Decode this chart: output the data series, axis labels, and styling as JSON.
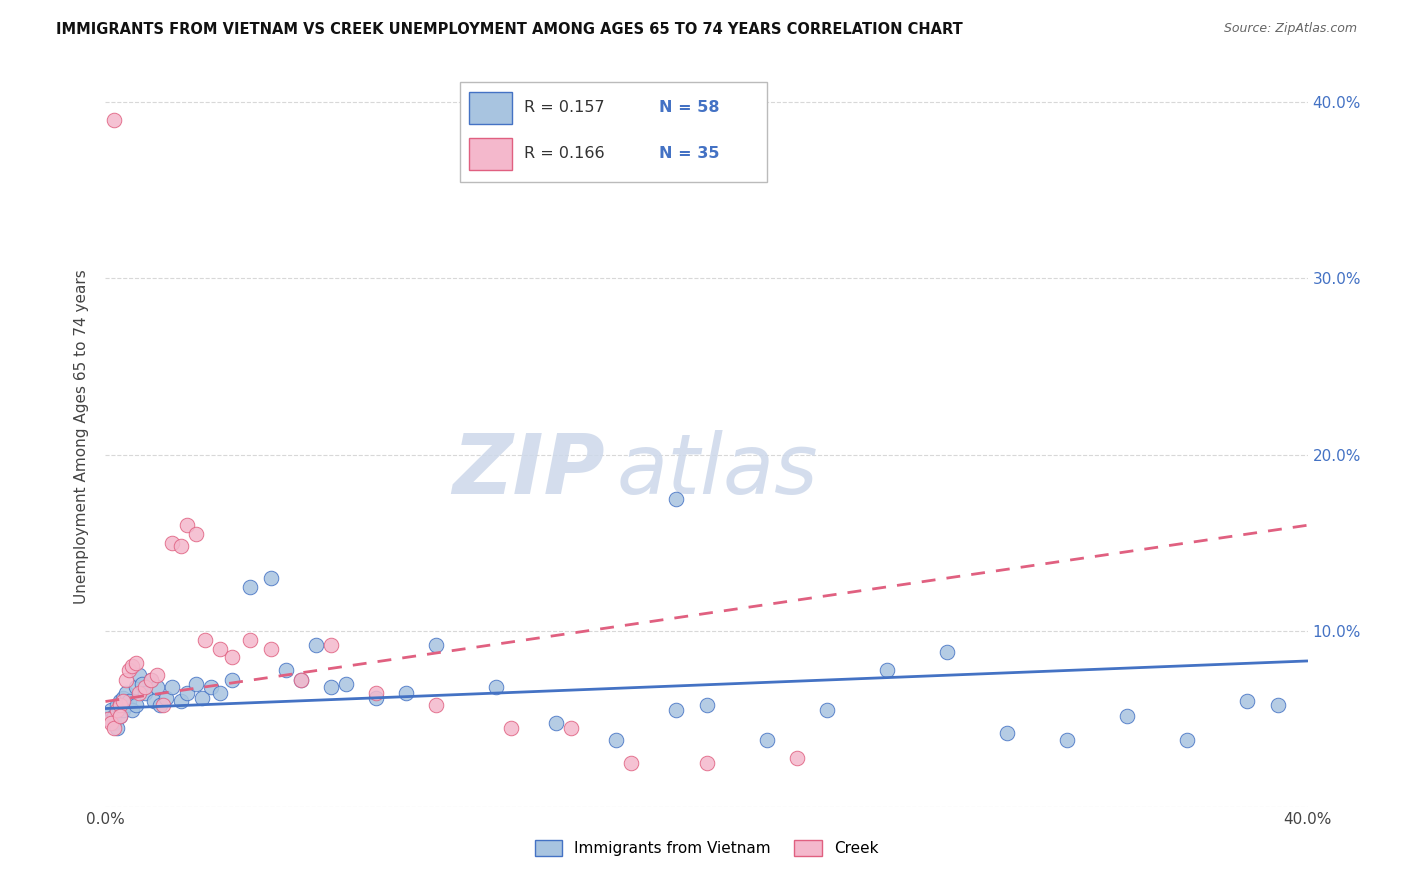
{
  "title": "IMMIGRANTS FROM VIETNAM VS CREEK UNEMPLOYMENT AMONG AGES 65 TO 74 YEARS CORRELATION CHART",
  "source": "Source: ZipAtlas.com",
  "ylabel": "Unemployment Among Ages 65 to 74 years",
  "xlim": [
    0.0,
    0.4
  ],
  "ylim": [
    0.0,
    0.42
  ],
  "color_vietnam": "#a8c4e0",
  "color_creek": "#f4b8cc",
  "line_color_vietnam": "#4472c4",
  "line_color_creek": "#e06080",
  "r_vietnam": "R = 0.157",
  "n_vietnam": "N = 58",
  "r_creek": "R = 0.166",
  "n_creek": "N = 35",
  "watermark": "ZIPatlas",
  "watermark_color": "#cdd8ea",
  "background_color": "#ffffff",
  "grid_color": "#d8d8d8",
  "vietnam_x": [
    0.001,
    0.002,
    0.003,
    0.003,
    0.004,
    0.004,
    0.005,
    0.005,
    0.006,
    0.006,
    0.007,
    0.007,
    0.008,
    0.009,
    0.01,
    0.01,
    0.011,
    0.012,
    0.013,
    0.015,
    0.016,
    0.017,
    0.018,
    0.02,
    0.022,
    0.025,
    0.027,
    0.03,
    0.032,
    0.035,
    0.038,
    0.042,
    0.048,
    0.055,
    0.06,
    0.065,
    0.07,
    0.075,
    0.08,
    0.09,
    0.1,
    0.11,
    0.13,
    0.15,
    0.17,
    0.19,
    0.2,
    0.22,
    0.24,
    0.26,
    0.28,
    0.3,
    0.32,
    0.34,
    0.36,
    0.38,
    0.39,
    0.19
  ],
  "vietnam_y": [
    0.05,
    0.055,
    0.048,
    0.052,
    0.045,
    0.058,
    0.052,
    0.06,
    0.055,
    0.062,
    0.058,
    0.065,
    0.06,
    0.055,
    0.068,
    0.058,
    0.075,
    0.07,
    0.065,
    0.072,
    0.06,
    0.068,
    0.058,
    0.062,
    0.068,
    0.06,
    0.065,
    0.07,
    0.062,
    0.068,
    0.065,
    0.072,
    0.125,
    0.13,
    0.078,
    0.072,
    0.092,
    0.068,
    0.07,
    0.062,
    0.065,
    0.092,
    0.068,
    0.048,
    0.038,
    0.055,
    0.058,
    0.038,
    0.055,
    0.078,
    0.088,
    0.042,
    0.038,
    0.052,
    0.038,
    0.06,
    0.058,
    0.175
  ],
  "creek_x": [
    0.001,
    0.002,
    0.003,
    0.004,
    0.005,
    0.005,
    0.006,
    0.007,
    0.008,
    0.009,
    0.01,
    0.011,
    0.013,
    0.015,
    0.017,
    0.019,
    0.022,
    0.025,
    0.027,
    0.03,
    0.033,
    0.038,
    0.042,
    0.048,
    0.055,
    0.065,
    0.075,
    0.09,
    0.11,
    0.135,
    0.155,
    0.175,
    0.2,
    0.23,
    0.003
  ],
  "creek_y": [
    0.05,
    0.048,
    0.045,
    0.055,
    0.058,
    0.052,
    0.06,
    0.072,
    0.078,
    0.08,
    0.082,
    0.065,
    0.068,
    0.072,
    0.075,
    0.058,
    0.15,
    0.148,
    0.16,
    0.155,
    0.095,
    0.09,
    0.085,
    0.095,
    0.09,
    0.072,
    0.092,
    0.065,
    0.058,
    0.045,
    0.045,
    0.025,
    0.025,
    0.028,
    0.39
  ],
  "trend_viet_x0": 0.0,
  "trend_viet_y0": 0.056,
  "trend_viet_x1": 0.4,
  "trend_viet_y1": 0.083,
  "trend_creek_x0": 0.0,
  "trend_creek_y0": 0.06,
  "trend_creek_x1": 0.4,
  "trend_creek_y1": 0.16
}
